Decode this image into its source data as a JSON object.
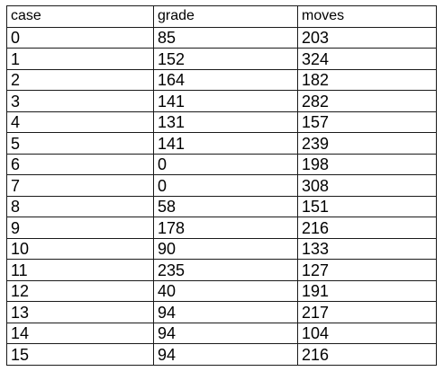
{
  "table": {
    "headers": [
      "case",
      "grade",
      "moves"
    ],
    "rows": [
      [
        "0",
        "85",
        "203"
      ],
      [
        "1",
        "152",
        "324"
      ],
      [
        "2",
        "164",
        "182"
      ],
      [
        "3",
        "141",
        "282"
      ],
      [
        "4",
        "131",
        "157"
      ],
      [
        "5",
        "141",
        "239"
      ],
      [
        "6",
        "0",
        "198"
      ],
      [
        "7",
        "0",
        "308"
      ],
      [
        "8",
        "58",
        "151"
      ],
      [
        "9",
        "178",
        "216"
      ],
      [
        "10",
        "90",
        "133"
      ],
      [
        "11",
        "235",
        "127"
      ],
      [
        "12",
        "40",
        "191"
      ],
      [
        "13",
        "94",
        "217"
      ],
      [
        "14",
        "94",
        "104"
      ],
      [
        "15",
        "94",
        "216"
      ]
    ]
  }
}
